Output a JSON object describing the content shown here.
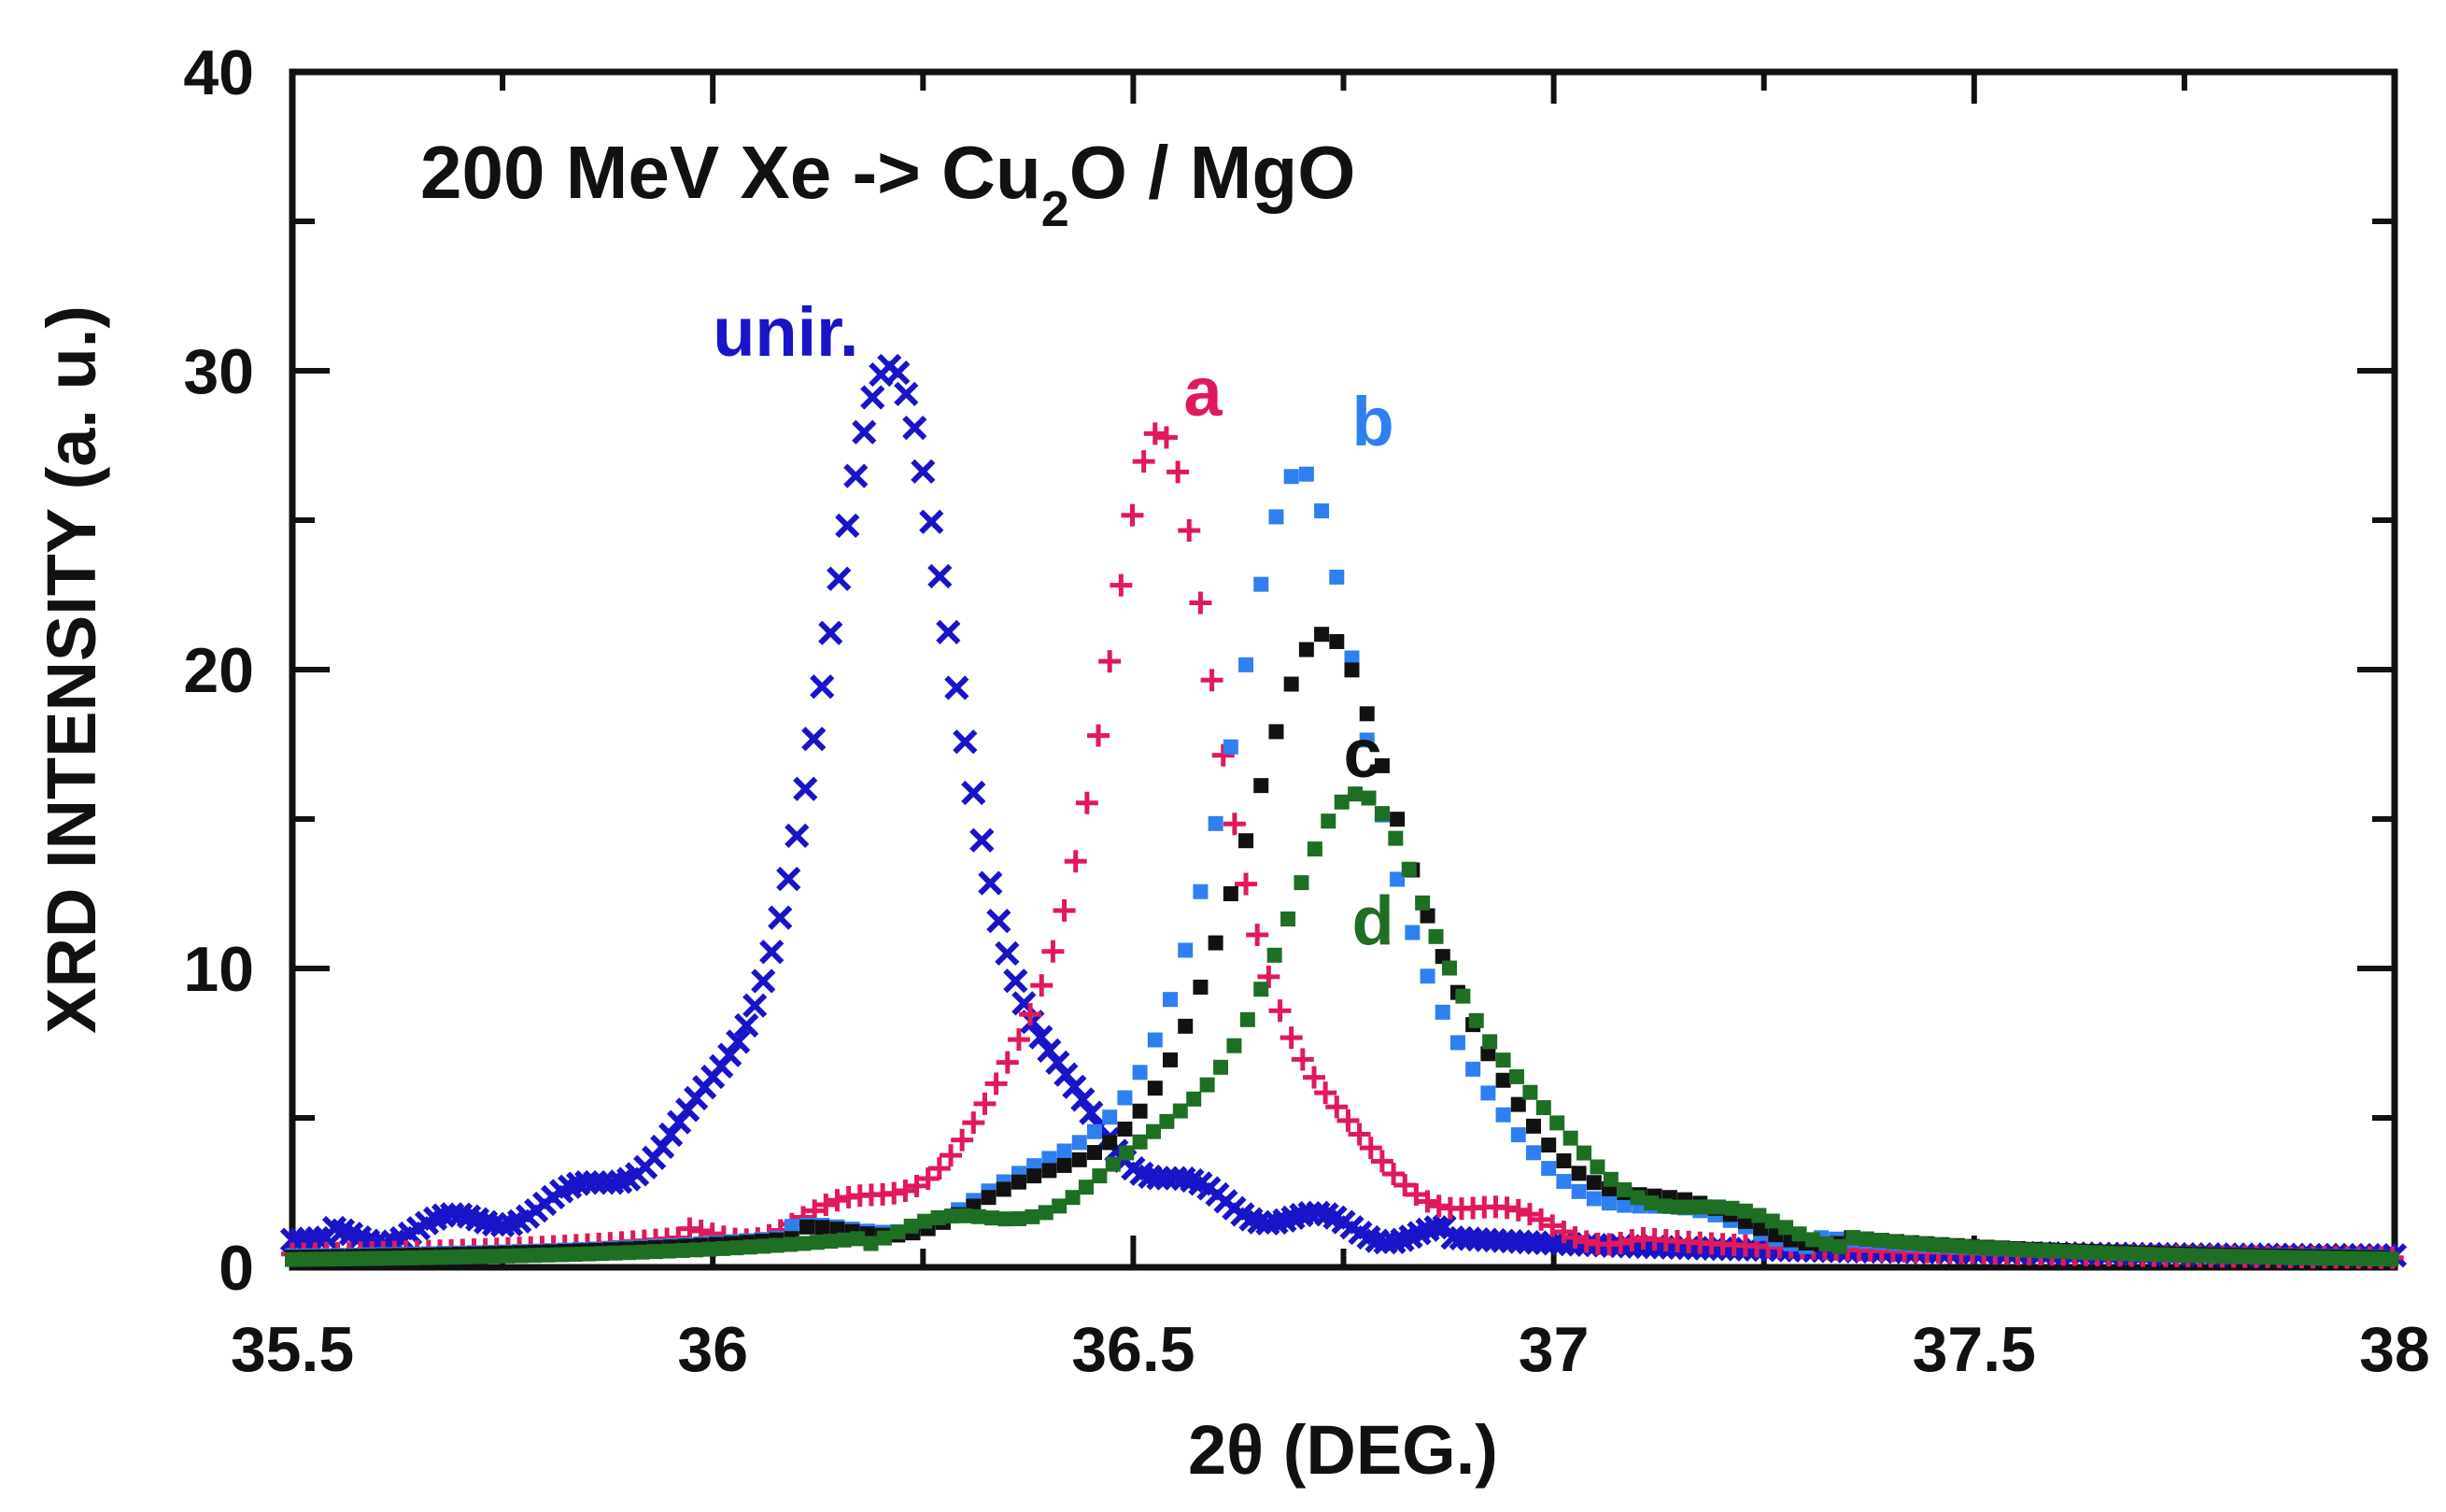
{
  "chart_data": {
    "type": "scatter",
    "title": {
      "pre": "200 MeV Xe -> Cu",
      "sub": "2",
      "post": "O / MgO"
    },
    "xlabel": "2θ  (DEG.)",
    "ylabel": "XRD INTENSITY (a. u.)",
    "xlim": [
      35.5,
      38
    ],
    "ylim": [
      0,
      40
    ],
    "xticks": [
      35.5,
      36,
      36.5,
      37,
      37.5,
      38
    ],
    "xtick_labels": [
      "35.5",
      "36",
      "36.5",
      "37",
      "37.5",
      "38"
    ],
    "yticks": [
      0,
      10,
      20,
      30,
      40
    ],
    "ytick_labels": [
      "0",
      "10",
      "20",
      "30",
      "40"
    ],
    "grid": false,
    "series": [
      {
        "name": "unir.",
        "color": "#1a14c8",
        "marker": "x",
        "center": 36.21,
        "peak": 30.2,
        "width": 0.11,
        "background": 0.3,
        "x_start": 35.5,
        "x_end": 38.0,
        "step": 0.01
      },
      {
        "name": "a",
        "color": "#e01a5a",
        "marker": "plus",
        "center": 36.53,
        "peak": 27.5,
        "width": 0.105,
        "background": 0.2,
        "x_start": 35.5,
        "x_end": 38.0,
        "step": 0.0135
      },
      {
        "name": "b",
        "color": "#2f7ff0",
        "marker": "square",
        "center": 36.7,
        "peak": 26.5,
        "width": 0.12,
        "background": 0.15,
        "x_start": 35.5,
        "x_end": 38.0,
        "step": 0.018
      },
      {
        "name": "c",
        "color": "#111111",
        "marker": "square",
        "center": 36.73,
        "peak": 21.3,
        "width": 0.14,
        "background": 0.1,
        "x_start": 35.5,
        "x_end": 38.0,
        "step": 0.018
      },
      {
        "name": "d",
        "color": "#1e6e24",
        "marker": "square",
        "center": 36.77,
        "peak": 15.5,
        "width": 0.16,
        "background": 0.05,
        "x_start": 35.5,
        "x_end": 38.0,
        "step": 0.016
      }
    ],
    "annotations": [
      {
        "text": "unir.",
        "color": "#1a14c8",
        "x": 36.0,
        "y": 30.5
      },
      {
        "text": "a",
        "color": "#e01a5a",
        "x": 36.56,
        "y": 28.5
      },
      {
        "text": "b",
        "color": "#2f7ff0",
        "x": 36.76,
        "y": 27.5
      },
      {
        "text": "c",
        "color": "#111111",
        "x": 36.75,
        "y": 16.4
      },
      {
        "text": "d",
        "color": "#1e6e24",
        "x": 36.76,
        "y": 10.8
      }
    ]
  }
}
